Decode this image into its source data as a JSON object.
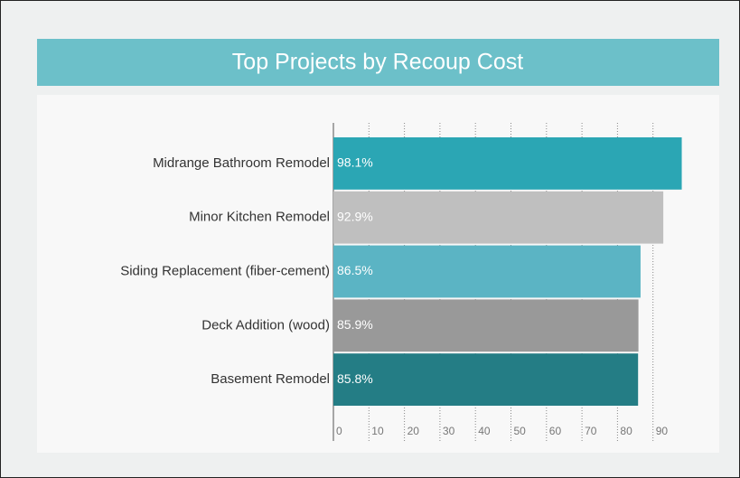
{
  "chart_data": {
    "type": "bar",
    "orientation": "horizontal",
    "title": "Top Projects by Recoup Cost",
    "categories": [
      "Midrange Bathroom Remodel",
      "Minor Kitchen Remodel",
      "Siding Replacement (fiber-cement)",
      "Deck Addition (wood)",
      "Basement Remodel"
    ],
    "values": [
      98.1,
      92.9,
      86.5,
      85.9,
      85.8
    ],
    "value_labels": [
      "98.1%",
      "92.9%",
      "86.5%",
      "85.9%",
      "85.8%"
    ],
    "colors": [
      "#2ba6b4",
      "#bfbfbf",
      "#5bb4c4",
      "#999999",
      "#247d85"
    ],
    "xlim": [
      0,
      100
    ],
    "xticks": [
      0,
      10,
      20,
      30,
      40,
      50,
      60,
      70,
      80,
      90
    ],
    "grid": true
  }
}
